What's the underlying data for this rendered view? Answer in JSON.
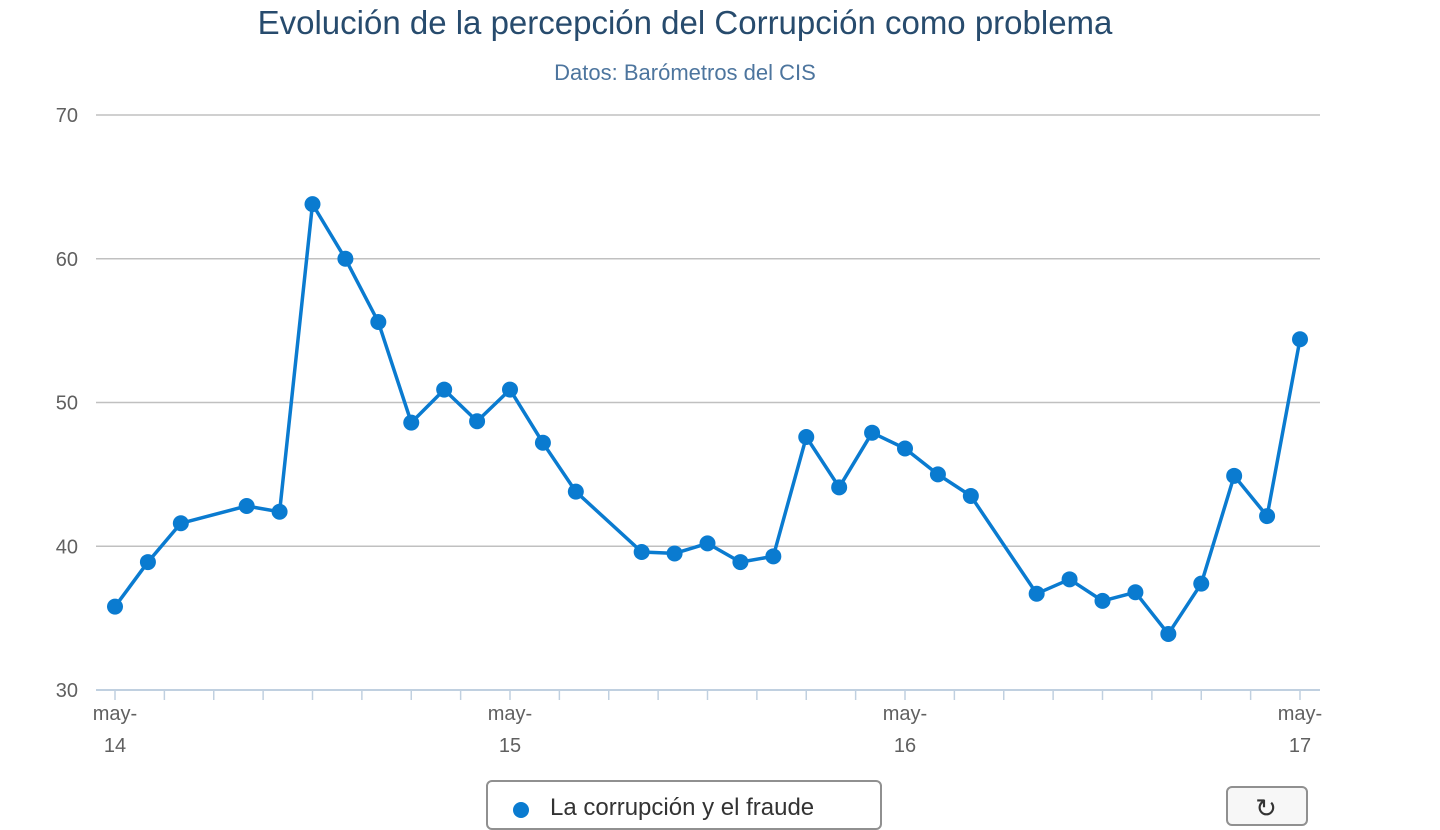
{
  "chart_data": {
    "type": "line",
    "title": "Evolución de la percepción del Corrupción como problema",
    "subtitle": "Datos: Barómetros del CIS",
    "xlabel": "",
    "ylabel": "",
    "ylim": [
      30,
      70
    ],
    "yticks": [
      30,
      40,
      50,
      60,
      70
    ],
    "x": [
      "2014-05",
      "2014-06",
      "2014-07",
      "2014-09",
      "2014-10",
      "2014-11",
      "2014-12",
      "2015-01",
      "2015-02",
      "2015-03",
      "2015-04",
      "2015-05",
      "2015-06",
      "2015-07",
      "2015-09",
      "2015-10",
      "2015-11",
      "2015-12",
      "2016-01",
      "2016-02",
      "2016-03",
      "2016-04",
      "2016-05",
      "2016-06",
      "2016-07",
      "2016-09",
      "2016-10",
      "2016-11",
      "2016-12",
      "2017-01",
      "2017-02",
      "2017-03",
      "2017-04",
      "2017-05"
    ],
    "xtick_labels": [
      {
        "line1": "may-",
        "line2": "14"
      },
      {
        "line1": "may-",
        "line2": "15"
      },
      {
        "line1": "may-",
        "line2": "16"
      },
      {
        "line1": "may-",
        "line2": "17"
      }
    ],
    "series": [
      {
        "name": "La corrupción y el fraude",
        "color": "#0a7bd0",
        "values": [
          35.8,
          38.9,
          41.6,
          42.8,
          42.4,
          63.8,
          60.0,
          55.6,
          48.6,
          50.9,
          48.7,
          50.9,
          47.2,
          43.8,
          39.6,
          39.5,
          40.2,
          38.9,
          39.3,
          47.6,
          44.1,
          47.9,
          46.8,
          45.0,
          43.5,
          36.7,
          37.7,
          36.2,
          36.8,
          33.9,
          37.4,
          44.9,
          42.1,
          54.4
        ]
      }
    ],
    "grid": true,
    "legend": "bottom-center"
  },
  "controls": {
    "reset_icon": "refresh-icon",
    "reset_glyph": "↻"
  }
}
